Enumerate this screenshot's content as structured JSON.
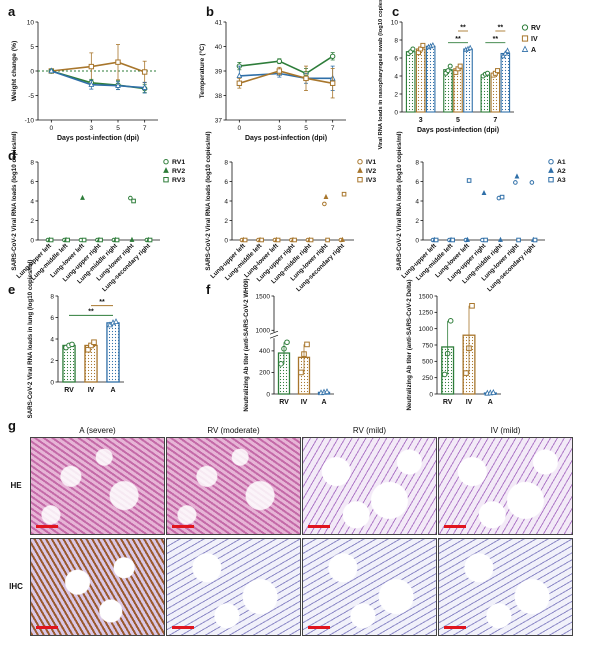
{
  "colors": {
    "RV": "#2e7d3a",
    "IV": "#a8762c",
    "A": "#2f6fa8",
    "sig": "#2e7d3a",
    "sig2": "#a8762c"
  },
  "chart_data": [
    {
      "id": "a",
      "panel_label": "a",
      "type": "line",
      "xlabel": "Days post-infection (dpi)",
      "ylabel": "Weight change (%)",
      "xlim": [
        -1,
        8
      ],
      "ylim": [
        -10,
        10
      ],
      "xticks": [
        0,
        3,
        5,
        7
      ],
      "yticks": [
        -10,
        -5,
        0,
        5,
        10
      ],
      "baseline": 0,
      "series": [
        {
          "group": "IV",
          "x": [
            0,
            3,
            5,
            7
          ],
          "y": [
            0,
            0.9,
            1.8,
            -0.2
          ],
          "err": [
            0.2,
            2.8,
            3.6,
            2.2
          ]
        },
        {
          "group": "RV",
          "x": [
            0,
            3,
            5,
            7
          ],
          "y": [
            0,
            -2.4,
            -2.9,
            -3.6
          ],
          "err": [
            0.2,
            0.7,
            0.9,
            0.8
          ]
        },
        {
          "group": "A",
          "x": [
            0,
            3,
            5,
            7
          ],
          "y": [
            0,
            -2.8,
            -3.0,
            -3.4
          ],
          "err": [
            0.2,
            0.9,
            0.8,
            1.1
          ]
        }
      ]
    },
    {
      "id": "b",
      "panel_label": "b",
      "type": "line",
      "xlabel": "Days post-infection (dpi)",
      "ylabel": "Temperature (°C)",
      "xlim": [
        -1,
        8
      ],
      "ylim": [
        37,
        41
      ],
      "xticks": [
        0,
        3,
        5,
        7
      ],
      "yticks": [
        37,
        38,
        39,
        40,
        41
      ],
      "series": [
        {
          "group": "RV",
          "x": [
            0,
            3,
            5,
            7
          ],
          "y": [
            39.2,
            39.4,
            38.9,
            39.6
          ],
          "err": [
            0.15,
            0.1,
            0.2,
            0.15
          ]
        },
        {
          "group": "A",
          "x": [
            0,
            3,
            5,
            7
          ],
          "y": [
            38.8,
            38.9,
            38.7,
            38.7
          ],
          "err": [
            0.4,
            0.15,
            0.2,
            0.5
          ]
        },
        {
          "group": "IV",
          "x": [
            0,
            3,
            5,
            7
          ],
          "y": [
            38.5,
            39.0,
            38.7,
            38.5
          ],
          "err": [
            0.2,
            0.15,
            0.5,
            0.6
          ]
        }
      ]
    },
    {
      "id": "c",
      "panel_label": "c",
      "type": "bar",
      "xlabel": "Days post-infection (dpi)",
      "ylabel": "Viral RNA loads in nasopharyngeal swab (log10 copies/ml)",
      "categories": [
        "3",
        "5",
        "7"
      ],
      "ylim": [
        0,
        10
      ],
      "yticks": [
        0,
        2,
        4,
        6,
        8,
        10
      ],
      "series": [
        {
          "name": "RV",
          "group": "RV",
          "values": [
            6.7,
            4.7,
            4.1
          ],
          "points": [
            [
              6.5,
              6.7,
              7.0
            ],
            [
              4.3,
              4.6,
              5.1
            ],
            [
              4.0,
              4.2,
              4.3
            ]
          ]
        },
        {
          "name": "IV",
          "group": "IV",
          "values": [
            7.0,
            4.8,
            4.3
          ],
          "points": [
            [
              6.6,
              7.0,
              7.4
            ],
            [
              4.4,
              4.8,
              5.1
            ],
            [
              4.1,
              4.3,
              4.6
            ]
          ]
        },
        {
          "name": "A",
          "group": "A",
          "values": [
            7.3,
            7.0,
            6.5
          ],
          "points": [
            [
              7.2,
              7.3,
              7.4
            ],
            [
              6.9,
              7.0,
              7.1
            ],
            [
              6.2,
              6.5,
              6.8
            ]
          ]
        }
      ],
      "significance": [
        {
          "cat": 1,
          "from": "IV",
          "to": "A",
          "label": "**",
          "level": 9.0,
          "color": "sig2"
        },
        {
          "cat": 1,
          "from": "RV",
          "to": "A",
          "label": "**",
          "level": 7.7,
          "color": "sig"
        },
        {
          "cat": 2,
          "from": "IV",
          "to": "A",
          "label": "**",
          "level": 9.0,
          "color": "sig2"
        },
        {
          "cat": 2,
          "from": "RV",
          "to": "A",
          "label": "**",
          "level": 7.7,
          "color": "sig"
        }
      ]
    },
    {
      "id": "d1",
      "panel_label": "d",
      "type": "scatter",
      "ylabel": "SARS-CoV-2 Viral RNA loads (log10 copies/ml)",
      "categories": [
        "Lung-upper left",
        "Lung-middle left",
        "Lung-lower left",
        "Lung-upper right",
        "Lung-middle right",
        "Lung-lower right",
        "Lung-secondary right"
      ],
      "ylim": [
        0,
        8
      ],
      "yticks": [
        0,
        2,
        4,
        6,
        8
      ],
      "color_group": "RV",
      "series": [
        {
          "name": "RV1",
          "marker": "circle",
          "values": [
            0,
            0,
            0,
            0,
            0,
            4.3,
            0
          ]
        },
        {
          "name": "RV2",
          "marker": "triangle",
          "values": [
            0,
            0,
            4.3,
            0,
            0,
            0,
            0
          ]
        },
        {
          "name": "RV3",
          "marker": "square",
          "values": [
            0,
            0,
            0,
            0,
            0,
            4.0,
            0
          ]
        }
      ]
    },
    {
      "id": "d2",
      "type": "scatter",
      "ylabel": "SARS-CoV-2 Viral RNA loads (log10 copies/ml)",
      "categories": [
        "Lung-upper left",
        "Lung-middle left",
        "Lung-lower left",
        "Lung-upper right",
        "Lung-middle right",
        "Lung-lower right",
        "Lung-secondary right"
      ],
      "ylim": [
        0,
        8
      ],
      "yticks": [
        0,
        2,
        4,
        6,
        8
      ],
      "color_group": "IV",
      "series": [
        {
          "name": "IV1",
          "marker": "circle",
          "values": [
            0,
            0,
            0,
            0,
            0,
            3.7,
            0
          ]
        },
        {
          "name": "IV2",
          "marker": "triangle",
          "values": [
            0,
            0,
            0,
            0,
            0,
            4.4,
            0
          ]
        },
        {
          "name": "IV3",
          "marker": "square",
          "values": [
            0,
            0,
            0,
            0,
            0,
            0,
            4.7
          ]
        }
      ]
    },
    {
      "id": "d3",
      "type": "scatter",
      "ylabel": "SARS-CoV-2 Viral RNA loads (log10 copies/ml)",
      "categories": [
        "Lung-upper left",
        "Lung-middle left",
        "Lung-lower left",
        "Lung-upper right",
        "Lung-middle right",
        "Lung-lower right",
        "Lung-secondary right"
      ],
      "ylim": [
        0,
        8
      ],
      "yticks": [
        0,
        2,
        4,
        6,
        8
      ],
      "color_group": "A",
      "series": [
        {
          "name": "A1",
          "marker": "circle",
          "values": [
            0,
            0,
            0,
            0,
            4.3,
            5.9,
            5.9
          ]
        },
        {
          "name": "A2",
          "marker": "triangle",
          "values": [
            0,
            0,
            0,
            4.8,
            0,
            6.5,
            0
          ]
        },
        {
          "name": "A3",
          "marker": "square",
          "values": [
            0,
            0,
            6.1,
            0,
            4.4,
            0,
            0
          ]
        }
      ]
    },
    {
      "id": "e",
      "panel_label": "e",
      "type": "bar",
      "ylabel": "SARS-CoV-2 Viral RNA loads in lung (log10 copies/ml)",
      "categories": [
        "RV",
        "IV",
        "A"
      ],
      "ylim": [
        0,
        8
      ],
      "yticks": [
        0,
        2,
        4,
        6,
        8
      ],
      "values": [
        3.4,
        3.4,
        5.5
      ],
      "points": [
        [
          3.2,
          3.4,
          3.5
        ],
        [
          3.0,
          3.4,
          3.7
        ],
        [
          5.3,
          5.5,
          5.6
        ]
      ],
      "significance": [
        {
          "from": 1,
          "to": 2,
          "label": "**",
          "level": 7.1,
          "color": "sig2"
        },
        {
          "from": 0,
          "to": 2,
          "label": "**",
          "level": 6.2,
          "color": "sig"
        }
      ]
    },
    {
      "id": "f1",
      "panel_label": "f",
      "type": "bar",
      "ylabel": "Neutralizing Ab titer (anti-SARS-CoV-2 WH09)",
      "categories": [
        "RV",
        "IV",
        "A"
      ],
      "ylim": [
        0,
        1500
      ],
      "axis_break": true,
      "yticks": [
        0,
        200,
        400,
        600,
        800,
        1000,
        1500
      ],
      "values": [
        380,
        340,
        15
      ],
      "points": [
        [
          280,
          420,
          480
        ],
        [
          200,
          370,
          460
        ],
        [
          10,
          15,
          20
        ]
      ]
    },
    {
      "id": "f2",
      "type": "bar",
      "ylabel": "Neutralizing Ab titer (anti-SARS-CoV-2 Delta)",
      "categories": [
        "RV",
        "IV",
        "A"
      ],
      "ylim": [
        0,
        1500
      ],
      "yticks": [
        0,
        250,
        500,
        750,
        1000,
        1250,
        1500
      ],
      "values": [
        720,
        900,
        15
      ],
      "points": [
        [
          300,
          620,
          1120
        ],
        [
          320,
          700,
          1350
        ],
        [
          10,
          15,
          20
        ]
      ]
    }
  ],
  "histology": {
    "panel_label": "g",
    "columns": [
      "A (severe)",
      "RV (moderate)",
      "RV (mild)",
      "IV (mild)"
    ],
    "rows": [
      "HE",
      "IHC"
    ]
  }
}
